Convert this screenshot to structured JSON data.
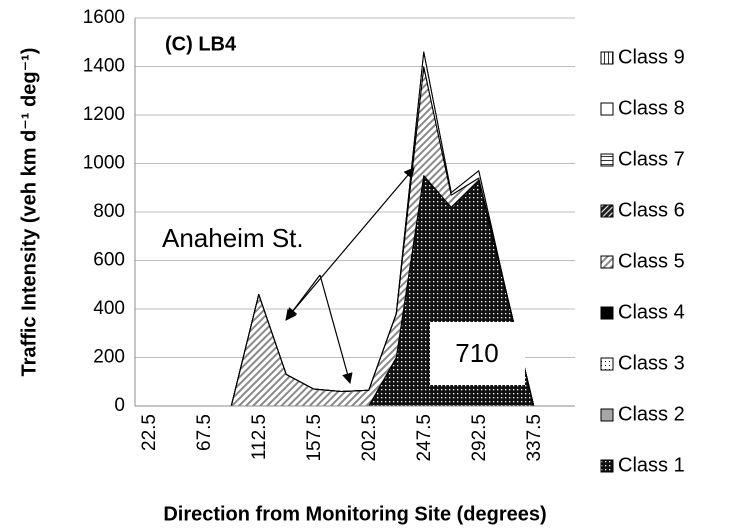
{
  "chart_data": {
    "type": "stacked_area",
    "title": "(C) LB4",
    "xlabel": "Direction from Monitoring Site (degrees)",
    "ylabel": "Traffic Intensity (veh km d⁻¹ deg⁻¹)",
    "categories": [
      "22.5",
      null,
      "67.5",
      null,
      "112.5",
      null,
      "157.5",
      null,
      "202.5",
      null,
      "247.5",
      null,
      "292.5",
      null,
      "337.5",
      null
    ],
    "ylim": [
      0,
      1600
    ],
    "yticks": [
      0,
      200,
      400,
      600,
      800,
      1000,
      1200,
      1400,
      1600
    ],
    "grid": true,
    "legend": "right",
    "annotations": [
      "Anaheim St.",
      "710"
    ],
    "series": [
      {
        "name": "Class 1",
        "color": "#111111",
        "pattern": "dots-dark",
        "values": [
          0,
          0,
          0,
          0,
          0,
          0,
          0,
          0,
          0,
          200,
          950,
          820,
          930,
          470,
          0,
          0
        ]
      },
      {
        "name": "Class 2",
        "color": "#a6a6a6",
        "pattern": "solid",
        "values": [
          0,
          0,
          0,
          0,
          0,
          0,
          0,
          0,
          0,
          0,
          0,
          0,
          0,
          0,
          0,
          0
        ]
      },
      {
        "name": "Class 3",
        "color": "#ffffff",
        "pattern": "dots-light",
        "values": [
          0,
          0,
          0,
          0,
          0,
          0,
          0,
          0,
          0,
          0,
          0,
          0,
          0,
          0,
          0,
          0
        ]
      },
      {
        "name": "Class 4",
        "color": "#000000",
        "pattern": "solid",
        "values": [
          0,
          0,
          0,
          0,
          0,
          0,
          0,
          0,
          0,
          0,
          0,
          0,
          0,
          0,
          0,
          0
        ]
      },
      {
        "name": "Class 5",
        "color": "#9a9a9a",
        "pattern": "hatch-light",
        "values": [
          0,
          0,
          0,
          0,
          460,
          130,
          70,
          60,
          65,
          180,
          450,
          50,
          10,
          0,
          0,
          0
        ]
      },
      {
        "name": "Class 6",
        "color": "#333333",
        "pattern": "hatch-dark",
        "values": [
          0,
          0,
          0,
          0,
          0,
          0,
          0,
          0,
          0,
          0,
          0,
          0,
          0,
          0,
          0,
          0
        ]
      },
      {
        "name": "Class 7",
        "color": "#555555",
        "pattern": "horizontal",
        "values": [
          0,
          0,
          0,
          0,
          0,
          0,
          0,
          0,
          0,
          0,
          0,
          0,
          0,
          0,
          0,
          0
        ]
      },
      {
        "name": "Class 8",
        "color": "#ffffff",
        "pattern": "solid",
        "values": [
          0,
          0,
          0,
          0,
          0,
          0,
          0,
          0,
          0,
          0,
          60,
          10,
          30,
          0,
          0,
          0
        ]
      },
      {
        "name": "Class 9",
        "color": "#555555",
        "pattern": "vertical",
        "values": [
          0,
          0,
          0,
          0,
          0,
          0,
          0,
          0,
          0,
          0,
          0,
          0,
          0,
          0,
          0,
          0
        ]
      }
    ]
  }
}
